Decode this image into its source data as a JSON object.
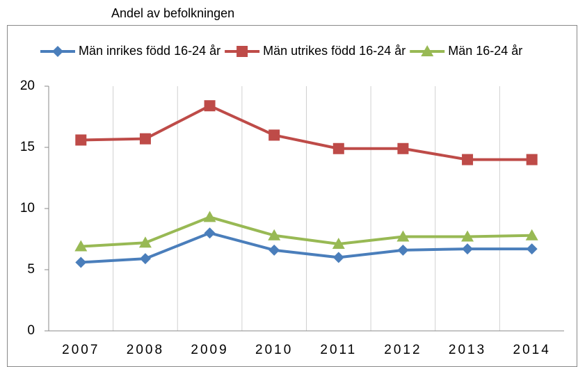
{
  "chart_data": {
    "type": "line",
    "title": "Andel av befolkningen",
    "categories": [
      "2007",
      "2008",
      "2009",
      "2010",
      "2011",
      "2012",
      "2013",
      "2014"
    ],
    "series": [
      {
        "name": "Män inrikes född 16-24 år",
        "color": "#4a7ebb",
        "marker": "diamond",
        "values": [
          5.6,
          5.9,
          8.0,
          6.6,
          6.0,
          6.6,
          6.7,
          6.7
        ]
      },
      {
        "name": "Män utrikes född 16-24 år",
        "color": "#be4b48",
        "marker": "square",
        "values": [
          15.6,
          15.7,
          18.4,
          16.0,
          14.9,
          14.9,
          14.0,
          14.0
        ]
      },
      {
        "name": "Män 16-24 år",
        "color": "#98b954",
        "marker": "triangle",
        "values": [
          6.9,
          7.2,
          9.3,
          7.8,
          7.1,
          7.7,
          7.7,
          7.8
        ]
      }
    ],
    "ylim": [
      0,
      20
    ],
    "yticks": [
      0,
      5,
      10,
      15,
      20
    ],
    "grid": true,
    "legend": "top"
  }
}
